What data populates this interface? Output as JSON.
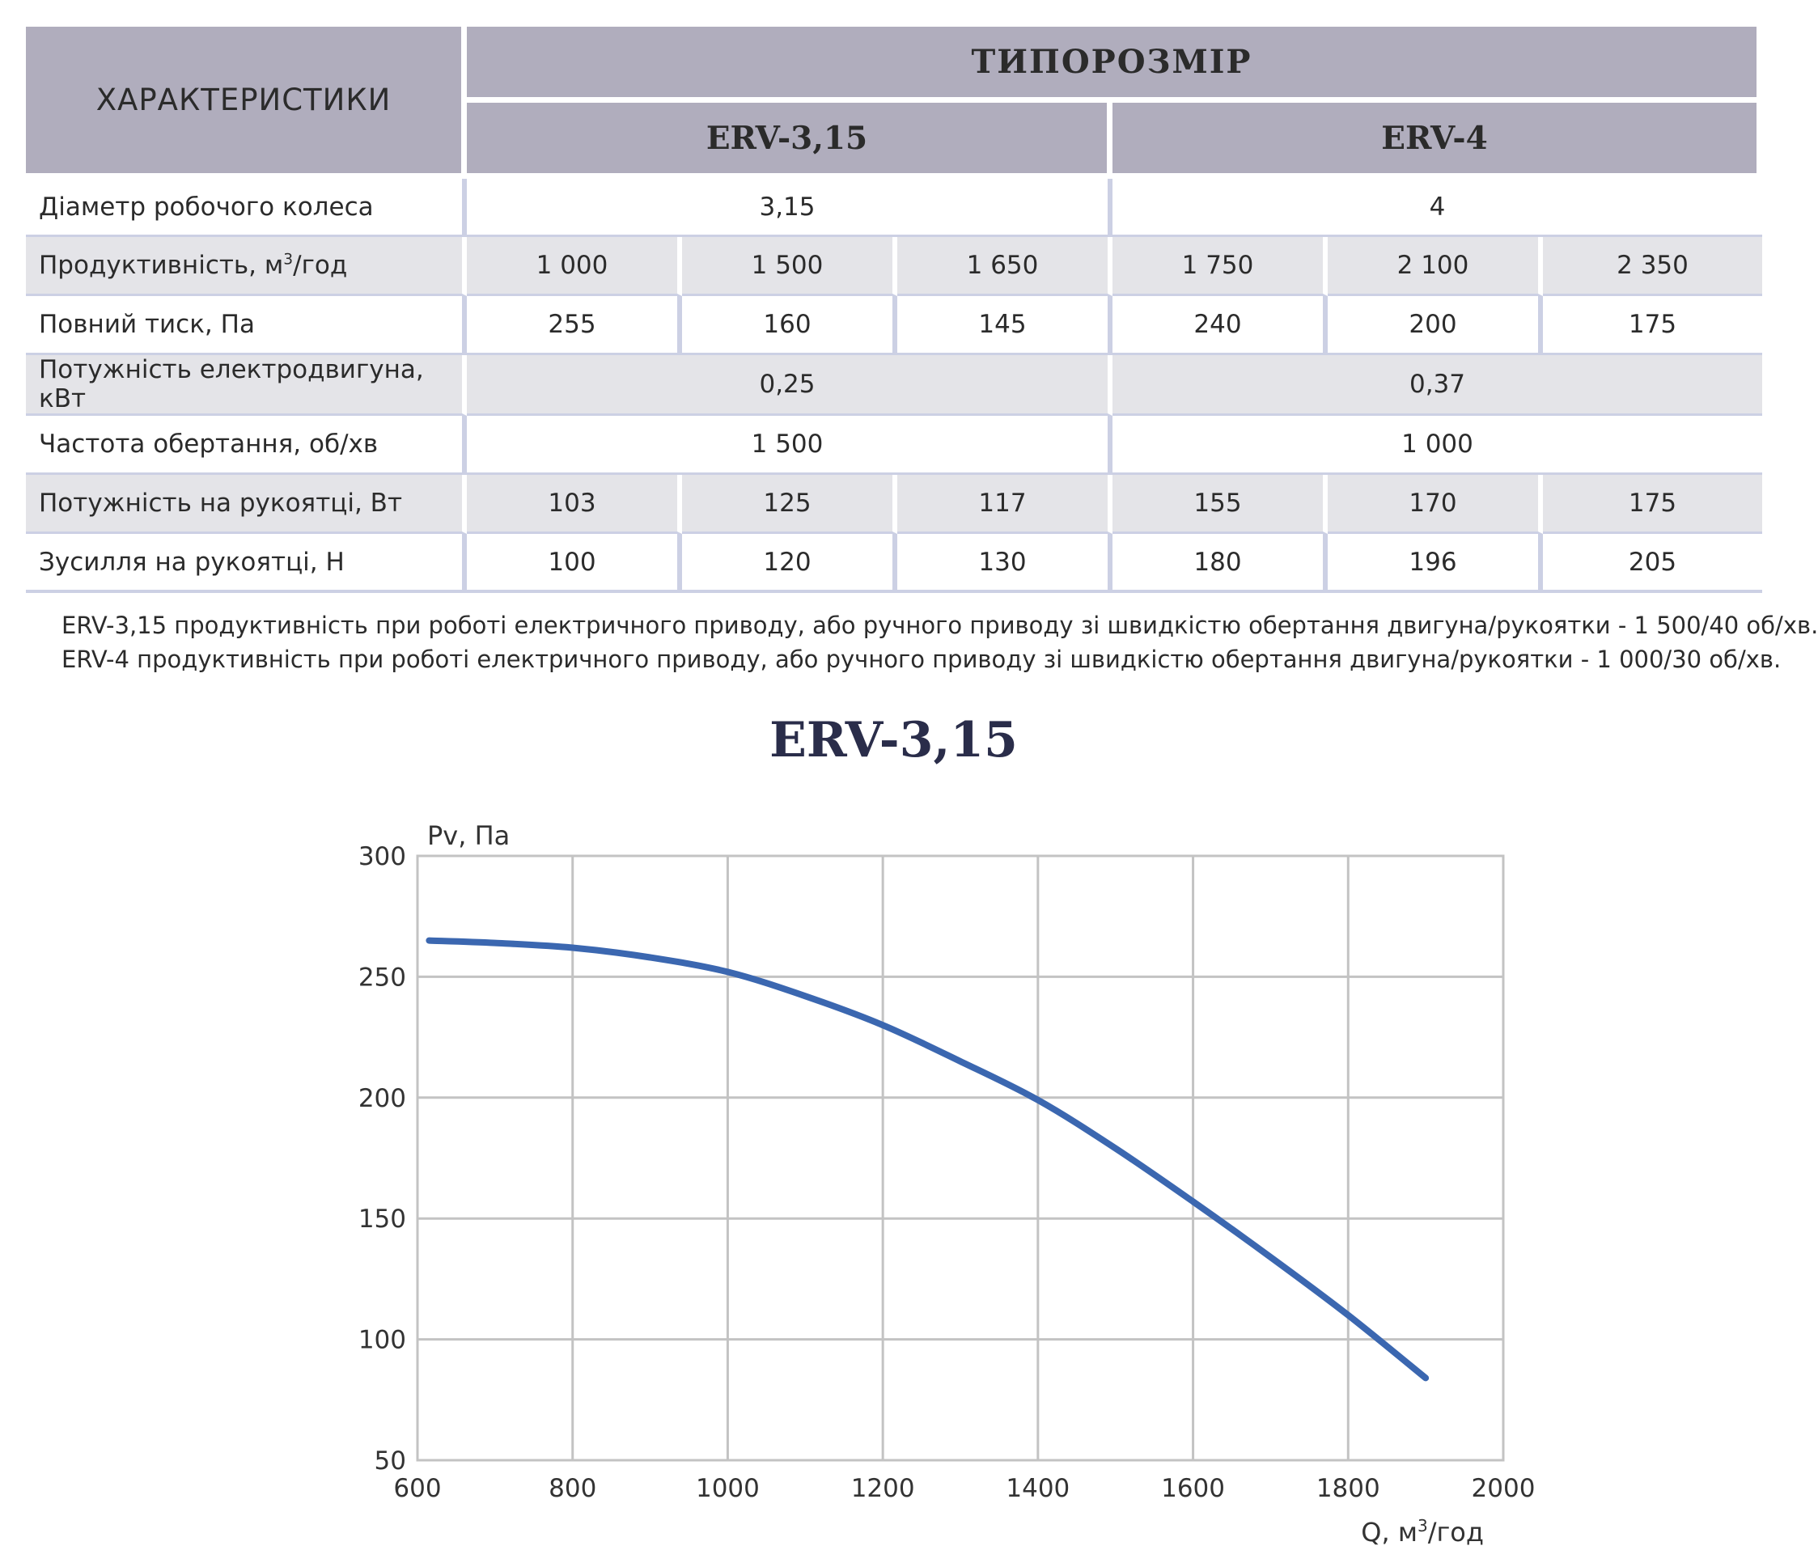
{
  "table": {
    "characteristics_header": "ХАРАКТЕРИСТИКИ",
    "size_header": "ТИПОРОЗМІР",
    "models": [
      "ERV-3,15",
      "ERV-4"
    ],
    "rows": {
      "diameter": {
        "label": "Діаметр робочого колеса",
        "values": [
          "3,15",
          "4"
        ]
      },
      "capacity": {
        "label_prefix": "Продуктивність, м",
        "label_sup": "3",
        "label_suffix": "/год",
        "values": [
          "1 000",
          "1 500",
          "1 650",
          "1 750",
          "2 100",
          "2 350"
        ]
      },
      "pressure": {
        "label": "Повний тиск, Па",
        "values": [
          "255",
          "160",
          "145",
          "240",
          "200",
          "175"
        ]
      },
      "motor_power": {
        "label": "Потужність електродвигуна, кВт",
        "values": [
          "0,25",
          "0,37"
        ]
      },
      "speed": {
        "label": "Частота обертання, об/хв",
        "values": [
          "1 500",
          "1 000"
        ]
      },
      "handle_power": {
        "label": "Потужність на рукоятці, Вт",
        "values": [
          "103",
          "125",
          "117",
          "155",
          "170",
          "175"
        ]
      },
      "handle_force": {
        "label": "Зусилля на рукоятці, Н",
        "values": [
          "100",
          "120",
          "130",
          "180",
          "196",
          "205"
        ]
      }
    }
  },
  "notes": [
    "ERV-3,15 продуктивність при роботі електричного приводу, або ручного приводу зі швидкістю обертання двигуна/рукоятки - 1 500/40 об/хв.",
    "ERV-4 продуктивність при роботі електричного приводу, або ручного приводу зі швидкістю обертання двигуна/рукоятки - 1 000/30 об/хв."
  ],
  "chart_data": {
    "type": "line",
    "title": "ERV-3,15",
    "ylabel": "Pv, Па",
    "xlabel_prefix": "Q, м",
    "xlabel_sup": "3",
    "xlabel_suffix": "/год",
    "xlim": [
      600,
      2000
    ],
    "ylim": [
      50,
      300
    ],
    "x_ticks": [
      "600",
      "800",
      "1000",
      "1200",
      "1400",
      "1600",
      "1800",
      "2000"
    ],
    "y_ticks": [
      "50",
      "100",
      "150",
      "200",
      "250",
      "300"
    ],
    "grid": true,
    "line_color": "#3b67b0",
    "series": [
      {
        "x": [
          615,
          700,
          800,
          900,
          1000,
          1100,
          1200,
          1300,
          1400,
          1500,
          1600,
          1700,
          1800,
          1900
        ],
        "y": [
          265,
          264,
          262,
          258,
          252,
          242,
          230,
          215,
          199,
          179,
          157,
          134,
          110,
          84
        ]
      }
    ]
  }
}
